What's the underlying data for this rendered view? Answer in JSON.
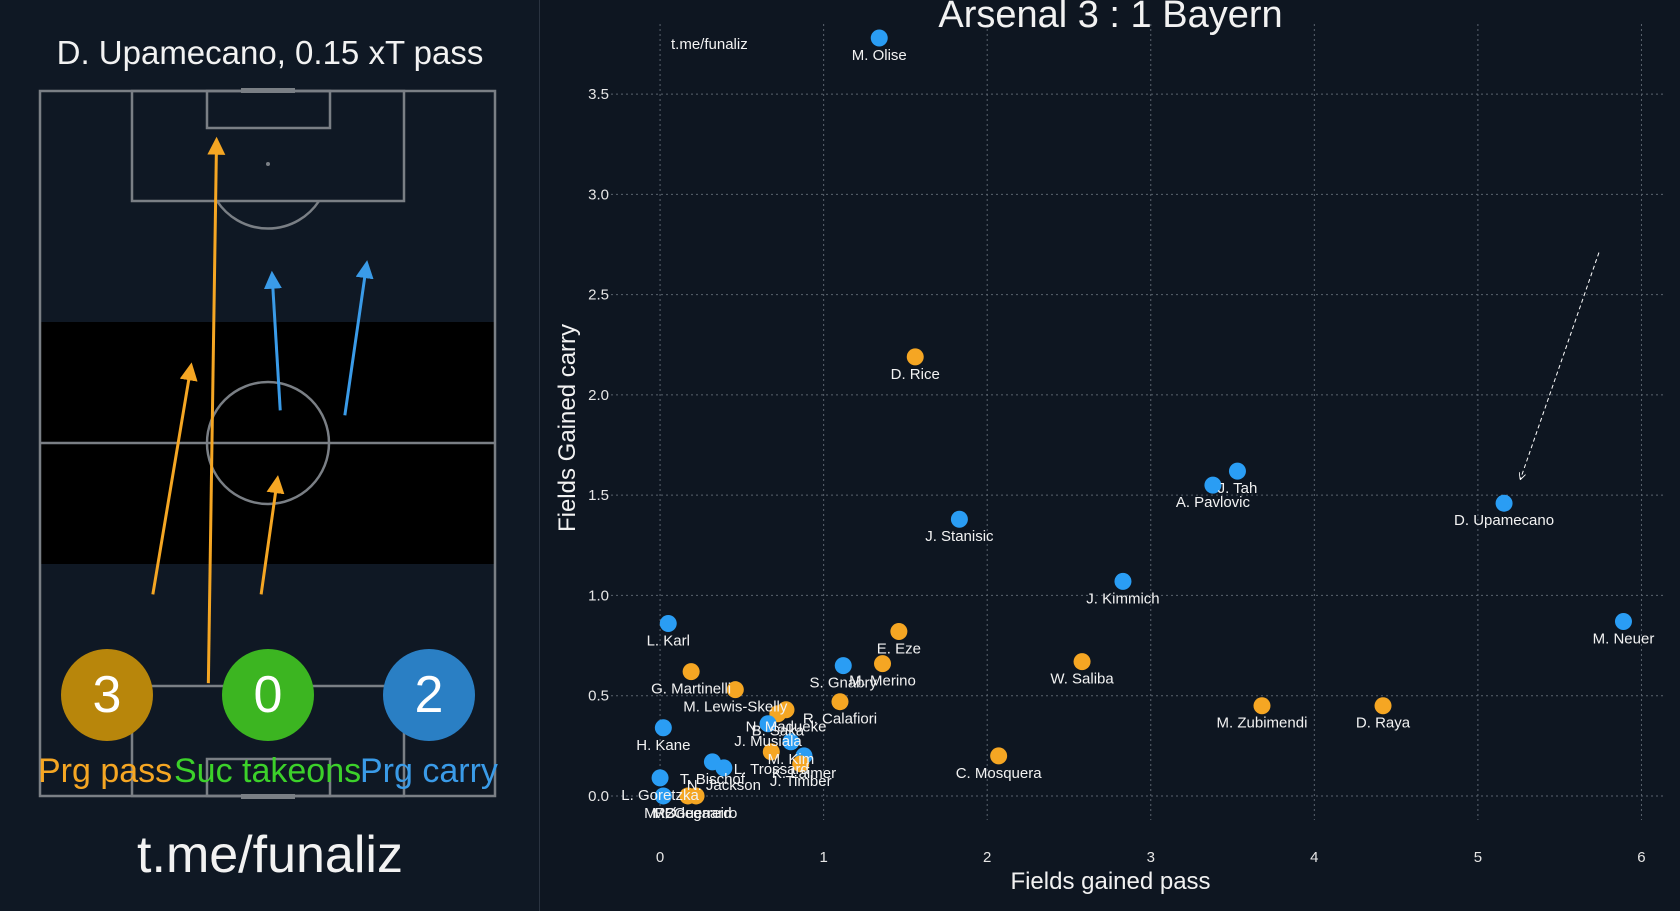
{
  "left_panel": {
    "title": "D. Upamecano, 0.15 xT pass",
    "handle": "t.me/funaliz",
    "stats": [
      {
        "value": "3",
        "label": "Prg pass",
        "color": "#b8860b",
        "label_color": "#f5a623"
      },
      {
        "value": "0",
        "label": "Suc takeons",
        "color": "#3cb521",
        "label_color": "#3cd12a"
      },
      {
        "value": "2",
        "label": "Prg carry",
        "color": "#2a7fc4",
        "label_color": "#3a9be8"
      }
    ],
    "passes": [
      {
        "x1": 37.0,
        "y1": 16.0,
        "x2": 38.8,
        "y2": 93.0
      },
      {
        "x1": 24.8,
        "y1": 28.6,
        "x2": 33.2,
        "y2": 61.0
      },
      {
        "x1": 48.6,
        "y1": 28.6,
        "x2": 52.2,
        "y2": 45.0
      }
    ],
    "carries": [
      {
        "x1": 52.8,
        "y1": 54.7,
        "x2": 51.0,
        "y2": 74.0
      },
      {
        "x1": 67.0,
        "y1": 54.0,
        "x2": 71.8,
        "y2": 75.5
      }
    ],
    "colors": {
      "pass": "#f5a623",
      "carry": "#3a9be8"
    }
  },
  "chart_data": {
    "type": "scatter",
    "title": "Arsenal 3 : 1 Bayern",
    "watermark": "t.me/funaliz",
    "xlabel": "Fields gained pass",
    "ylabel": "Fields Gained carry",
    "xlim": [
      -0.3,
      6.15
    ],
    "ylim": [
      -0.12,
      3.85
    ],
    "xticks": [
      "0",
      "1",
      "2",
      "3",
      "4",
      "5",
      "6"
    ],
    "yticks": [
      "0.0",
      "0.5",
      "1.0",
      "1.5",
      "2.0",
      "2.5",
      "3.0",
      "3.5"
    ],
    "grid": true,
    "colors": {
      "Arsenal": "#f5a623",
      "Bayern": "#2a9df4"
    },
    "points": [
      {
        "name": "M. Olise",
        "team": "Bayern",
        "x": 1.34,
        "y": 3.78
      },
      {
        "name": "D. Rice",
        "team": "Arsenal",
        "x": 1.56,
        "y": 2.19
      },
      {
        "name": "J. Tah",
        "team": "Bayern",
        "x": 3.53,
        "y": 1.62
      },
      {
        "name": "A. Pavlovic",
        "team": "Bayern",
        "x": 3.38,
        "y": 1.55
      },
      {
        "name": "D. Upamecano",
        "team": "Bayern",
        "x": 5.16,
        "y": 1.46
      },
      {
        "name": "J. Stanisic",
        "team": "Bayern",
        "x": 1.83,
        "y": 1.38
      },
      {
        "name": "J. Kimmich",
        "team": "Bayern",
        "x": 2.83,
        "y": 1.07
      },
      {
        "name": "M. Neuer",
        "team": "Bayern",
        "x": 5.89,
        "y": 0.87
      },
      {
        "name": "L. Karl",
        "team": "Bayern",
        "x": 0.05,
        "y": 0.86
      },
      {
        "name": "E. Eze",
        "team": "Arsenal",
        "x": 1.46,
        "y": 0.82
      },
      {
        "name": "W. Saliba",
        "team": "Arsenal",
        "x": 2.58,
        "y": 0.67
      },
      {
        "name": "S. Gnabry",
        "team": "Bayern",
        "x": 1.12,
        "y": 0.65
      },
      {
        "name": "M. Merino",
        "team": "Arsenal",
        "x": 1.36,
        "y": 0.66
      },
      {
        "name": "G. Martinelli",
        "team": "Arsenal",
        "x": 0.19,
        "y": 0.62
      },
      {
        "name": "M. Lewis-Skelly",
        "team": "Arsenal",
        "x": 0.46,
        "y": 0.53
      },
      {
        "name": "R. Calafiori",
        "team": "Arsenal",
        "x": 1.1,
        "y": 0.47
      },
      {
        "name": "N. Madueke",
        "team": "Arsenal",
        "x": 0.77,
        "y": 0.43
      },
      {
        "name": "B. Saka",
        "team": "Arsenal",
        "x": 0.72,
        "y": 0.41
      },
      {
        "name": "M. Zubimendi",
        "team": "Arsenal",
        "x": 3.68,
        "y": 0.45
      },
      {
        "name": "D. Raya",
        "team": "Arsenal",
        "x": 4.42,
        "y": 0.45
      },
      {
        "name": "J. Musiala",
        "team": "Bayern",
        "x": 0.66,
        "y": 0.36
      },
      {
        "name": "H. Kane",
        "team": "Bayern",
        "x": 0.02,
        "y": 0.34
      },
      {
        "name": "M. Kim",
        "team": "Bayern",
        "x": 0.8,
        "y": 0.27
      },
      {
        "name": "K. Laimer",
        "team": "Bayern",
        "x": 0.88,
        "y": 0.2
      },
      {
        "name": "T. Bischof",
        "team": "Bayern",
        "x": 0.32,
        "y": 0.17
      },
      {
        "name": "L. Trossard",
        "team": "Arsenal",
        "x": 0.68,
        "y": 0.22
      },
      {
        "name": "J. Timber",
        "team": "Arsenal",
        "x": 0.86,
        "y": 0.16
      },
      {
        "name": "N. Jackson",
        "team": "Bayern",
        "x": 0.39,
        "y": 0.14
      },
      {
        "name": "C. Mosquera",
        "team": "Arsenal",
        "x": 2.07,
        "y": 0.2
      },
      {
        "name": "L. Goretzka",
        "team": "Bayern",
        "x": 0.0,
        "y": 0.09
      },
      {
        "name": "M. Ødegaard",
        "team": "Arsenal",
        "x": 0.17,
        "y": 0.0
      },
      {
        "name": "R. Guerreiro",
        "team": "Arsenal",
        "x": 0.22,
        "y": 0.0
      },
      {
        "name": "MB",
        "team": "Bayern",
        "x": 0.02,
        "y": 0.0
      }
    ],
    "annotation": {
      "target": "D. Upamecano",
      "arrow_from": {
        "x": 5.74,
        "y": 2.71
      },
      "arrow_to": {
        "x": 5.26,
        "y": 1.58
      }
    }
  }
}
